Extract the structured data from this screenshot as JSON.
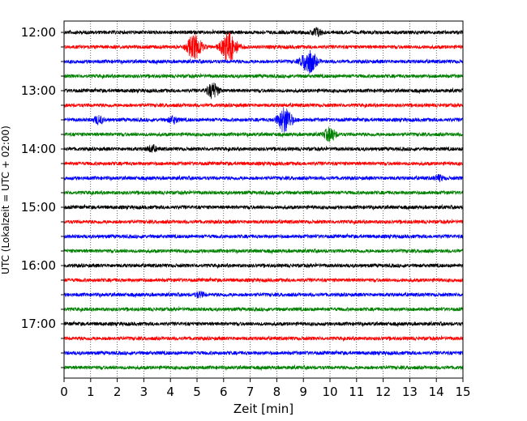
{
  "chart_data": {
    "type": "line",
    "title": "",
    "xlabel": "Zeit  [min]",
    "ylabel": "UTC (Lokalzeit = UTC + 02:00)",
    "xlim": [
      0,
      15
    ],
    "x_ticks": [
      "0",
      "1",
      "2",
      "3",
      "4",
      "5",
      "6",
      "7",
      "8",
      "9",
      "10",
      "11",
      "12",
      "13",
      "14",
      "15"
    ],
    "y_tick_labels": [
      "12:00",
      "13:00",
      "14:00",
      "15:00",
      "16:00",
      "17:00"
    ],
    "grid": "vertical dotted at each minute",
    "row_interval_minutes": 15,
    "row_colors": [
      "#000000",
      "#ff0000",
      "#0000ff",
      "#008000"
    ],
    "rows": [
      {
        "start": "12:00",
        "color": "#000000",
        "events": [
          {
            "t": 9.5,
            "amp": 0.35
          }
        ]
      },
      {
        "start": "12:15",
        "color": "#ff0000",
        "events": [
          {
            "t": 4.9,
            "amp": 1.0
          },
          {
            "t": 6.2,
            "amp": 1.2
          }
        ]
      },
      {
        "start": "12:30",
        "color": "#0000ff",
        "events": [
          {
            "t": 9.2,
            "amp": 1.0
          }
        ]
      },
      {
        "start": "12:45",
        "color": "#008000",
        "events": []
      },
      {
        "start": "13:00",
        "color": "#000000",
        "events": [
          {
            "t": 5.6,
            "amp": 0.6
          }
        ]
      },
      {
        "start": "13:15",
        "color": "#ff0000",
        "events": []
      },
      {
        "start": "13:30",
        "color": "#0000ff",
        "events": [
          {
            "t": 1.3,
            "amp": 0.3
          },
          {
            "t": 4.1,
            "amp": 0.25
          },
          {
            "t": 8.3,
            "amp": 1.0
          }
        ]
      },
      {
        "start": "13:45",
        "color": "#008000",
        "events": [
          {
            "t": 10.0,
            "amp": 0.55
          }
        ]
      },
      {
        "start": "14:00",
        "color": "#000000",
        "events": [
          {
            "t": 3.3,
            "amp": 0.25
          }
        ]
      },
      {
        "start": "14:15",
        "color": "#ff0000",
        "events": []
      },
      {
        "start": "14:30",
        "color": "#0000ff",
        "events": [
          {
            "t": 14.1,
            "amp": 0.2
          }
        ]
      },
      {
        "start": "14:45",
        "color": "#008000",
        "events": []
      },
      {
        "start": "15:00",
        "color": "#000000",
        "events": []
      },
      {
        "start": "15:15",
        "color": "#ff0000",
        "events": []
      },
      {
        "start": "15:30",
        "color": "#0000ff",
        "events": []
      },
      {
        "start": "15:45",
        "color": "#008000",
        "events": []
      },
      {
        "start": "16:00",
        "color": "#000000",
        "events": []
      },
      {
        "start": "16:15",
        "color": "#ff0000",
        "events": []
      },
      {
        "start": "16:30",
        "color": "#0000ff",
        "events": [
          {
            "t": 5.1,
            "amp": 0.2
          }
        ]
      },
      {
        "start": "16:45",
        "color": "#008000",
        "events": []
      },
      {
        "start": "17:00",
        "color": "#000000",
        "events": []
      },
      {
        "start": "17:15",
        "color": "#ff0000",
        "events": []
      },
      {
        "start": "17:30",
        "color": "#0000ff",
        "events": []
      },
      {
        "start": "17:45",
        "color": "#008000",
        "events": []
      }
    ]
  }
}
